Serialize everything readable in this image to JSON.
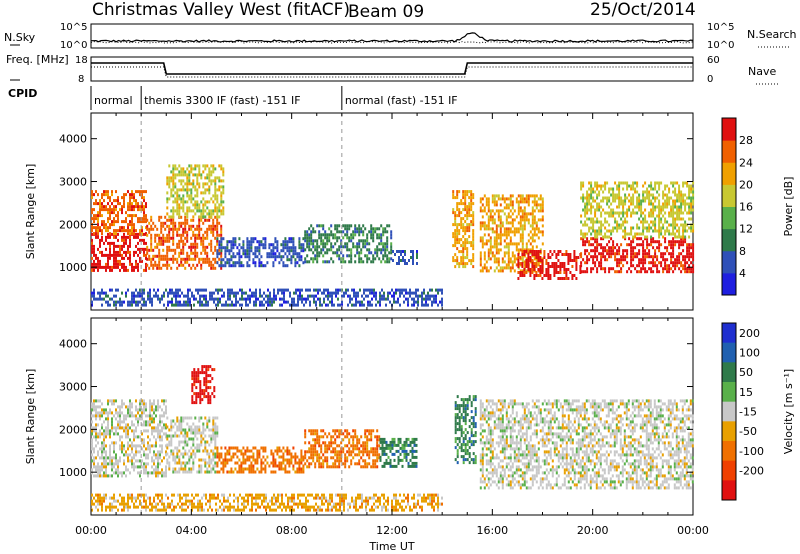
{
  "header": {
    "station": "Christmas Valley West (fitACF)",
    "beam": "Beam 09",
    "date": "25/Oct/2014"
  },
  "strip_labels": {
    "nsky": "N.Sky",
    "nsearch": "N.Search",
    "freq": "Freq. [MHz]",
    "nave": "Nave",
    "cpid": "CPID",
    "noise_left_ticks": [
      "10^5",
      "10^0"
    ],
    "noise_right_ticks": [
      "10^5",
      "10^0"
    ],
    "freq_left_ticks": [
      "18",
      "8"
    ],
    "freq_right_ticks": [
      "60",
      "0"
    ]
  },
  "cpid_segments": [
    {
      "label": "normal",
      "start": 0.0,
      "end": 2.0
    },
    {
      "label": "themis 3300 IF (fast) -151 IF",
      "start": 2.0,
      "end": 10.0
    },
    {
      "label": "normal (fast) -151 IF",
      "start": 10.0,
      "end": 24.0
    }
  ],
  "colors": {
    "power_scale": [
      "#1f1fe0",
      "#2f50b8",
      "#2f7a4a",
      "#59b04a",
      "#c8c832",
      "#f0a000",
      "#f06000",
      "#e01010"
    ],
    "velocity_scale": [
      "#1f2fd0",
      "#2060b0",
      "#2f7a4a",
      "#59b04a",
      "#c8c8c8",
      "#e8a000",
      "#f07000",
      "#f04000",
      "#e01010"
    ]
  },
  "chart_data": [
    {
      "type": "heatmap",
      "title": "Power",
      "xlabel": "Time UT",
      "ylabel": "Slant Range [km]",
      "xlim": [
        0,
        24
      ],
      "ylim": [
        0,
        4600
      ],
      "x_ticks": [
        "00:00",
        "04:00",
        "08:00",
        "12:00",
        "16:00",
        "20:00",
        "00:00"
      ],
      "y_ticks": [
        1000,
        2000,
        3000,
        4000
      ],
      "colorbar": {
        "label": "Power [dB]",
        "ticks": [
          4,
          8,
          12,
          16,
          20,
          24,
          28
        ],
        "range": [
          0,
          32
        ]
      },
      "regions": [
        {
          "t0": 0.0,
          "t1": 2.2,
          "r0": 900,
          "r1": 1800,
          "level": 28
        },
        {
          "t0": 0.0,
          "t1": 2.2,
          "r0": 1800,
          "r1": 2800,
          "level": 24
        },
        {
          "t0": 2.2,
          "t1": 5.2,
          "r0": 1000,
          "r1": 2200,
          "level": 26
        },
        {
          "t0": 3.0,
          "t1": 5.3,
          "r0": 2200,
          "r1": 3400,
          "level": 16
        },
        {
          "t0": 5.0,
          "t1": 8.5,
          "r0": 1000,
          "r1": 1700,
          "level": 6
        },
        {
          "t0": 8.5,
          "t1": 12.0,
          "r0": 1100,
          "r1": 2000,
          "level": 10
        },
        {
          "t0": 12.0,
          "t1": 13.0,
          "r0": 1100,
          "r1": 1400,
          "level": 6
        },
        {
          "t0": 14.4,
          "t1": 15.2,
          "r0": 1000,
          "r1": 2800,
          "level": 22
        },
        {
          "t0": 15.5,
          "t1": 18.0,
          "r0": 900,
          "r1": 2700,
          "level": 20
        },
        {
          "t0": 17.0,
          "t1": 19.5,
          "r0": 700,
          "r1": 1400,
          "level": 28
        },
        {
          "t0": 19.5,
          "t1": 24.0,
          "r0": 900,
          "r1": 1700,
          "level": 28
        },
        {
          "t0": 19.5,
          "t1": 24.0,
          "r0": 1700,
          "r1": 3000,
          "level": 18
        },
        {
          "t0": 0.0,
          "t1": 14.0,
          "r0": 100,
          "r1": 500,
          "level": 4
        }
      ]
    },
    {
      "type": "heatmap",
      "title": "Velocity",
      "xlabel": "Time UT",
      "ylabel": "Slant Range [km]",
      "xlim": [
        0,
        24
      ],
      "ylim": [
        0,
        4600
      ],
      "x_ticks": [
        "00:00",
        "04:00",
        "08:00",
        "12:00",
        "16:00",
        "20:00",
        "00:00"
      ],
      "y_ticks": [
        1000,
        2000,
        3000,
        4000
      ],
      "colorbar": {
        "label": "Velocity [m s⁻¹]",
        "ticks": [
          200,
          100,
          50,
          15,
          -15,
          -50,
          -100,
          -200
        ],
        "range": [
          -250,
          250
        ]
      },
      "regions": [
        {
          "t0": 0.0,
          "t1": 3.0,
          "r0": 900,
          "r1": 2700,
          "level": 0
        },
        {
          "t0": 3.0,
          "t1": 5.0,
          "r0": 1000,
          "r1": 2300,
          "level": 0
        },
        {
          "t0": 4.0,
          "t1": 4.9,
          "r0": 2600,
          "r1": 3500,
          "level": -220
        },
        {
          "t0": 5.0,
          "t1": 8.5,
          "r0": 1000,
          "r1": 1600,
          "level": -60
        },
        {
          "t0": 8.5,
          "t1": 11.5,
          "r0": 1100,
          "r1": 2000,
          "level": -80
        },
        {
          "t0": 11.5,
          "t1": 13.0,
          "r0": 1100,
          "r1": 1800,
          "level": 60
        },
        {
          "t0": 14.5,
          "t1": 15.3,
          "r0": 1200,
          "r1": 2800,
          "level": 30
        },
        {
          "t0": 15.5,
          "t1": 24.0,
          "r0": 600,
          "r1": 2700,
          "level": 0
        },
        {
          "t0": 0.0,
          "t1": 14.0,
          "r0": 100,
          "r1": 500,
          "level": -30
        }
      ]
    }
  ]
}
